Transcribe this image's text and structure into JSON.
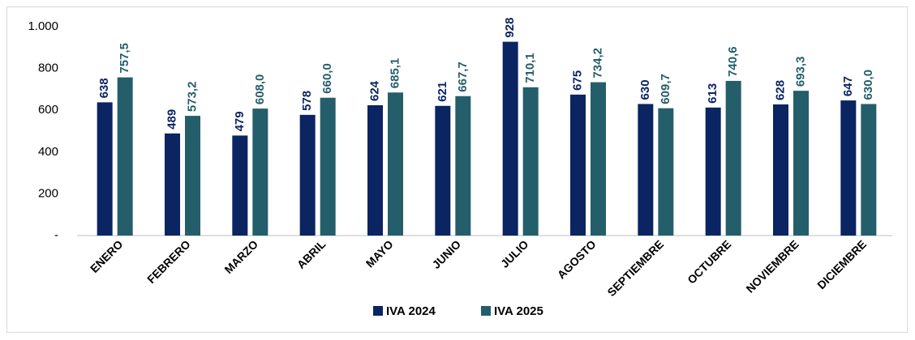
{
  "chart_data": {
    "type": "bar",
    "categories": [
      "ENERO",
      "FEBRERO",
      "MARZO",
      "ABRIL",
      "MAYO",
      "JUNIO",
      "JULIO",
      "AGOSTO",
      "SEPTIEMBRE",
      "OCTUBRE",
      "NOVIEMBRE",
      "DICIEMBRE"
    ],
    "series": [
      {
        "name": "IVA 2024",
        "color": "#0b2462",
        "values": [
          638,
          489,
          479,
          578,
          624,
          621,
          928,
          675,
          630,
          613,
          628,
          647
        ]
      },
      {
        "name": "IVA 2025",
        "color": "#255e6b",
        "values": [
          757.5,
          573.2,
          608.0,
          660.0,
          685.1,
          667.7,
          710.1,
          734.2,
          609.7,
          740.6,
          693.3,
          630.0
        ],
        "value_labels": [
          "757,5",
          "573,2",
          "608,0",
          "660,0",
          "685,1",
          "667,7",
          "710,1",
          "734,2",
          "609,7",
          "740,6",
          "693,3",
          "630,0"
        ]
      }
    ],
    "ylim": [
      0,
      1000
    ],
    "yticks": [
      {
        "value": 0,
        "label": "-"
      },
      200,
      400,
      600,
      800,
      {
        "value": 1000,
        "label": "1.000"
      }
    ],
    "grid": false,
    "legend": "bottom"
  }
}
